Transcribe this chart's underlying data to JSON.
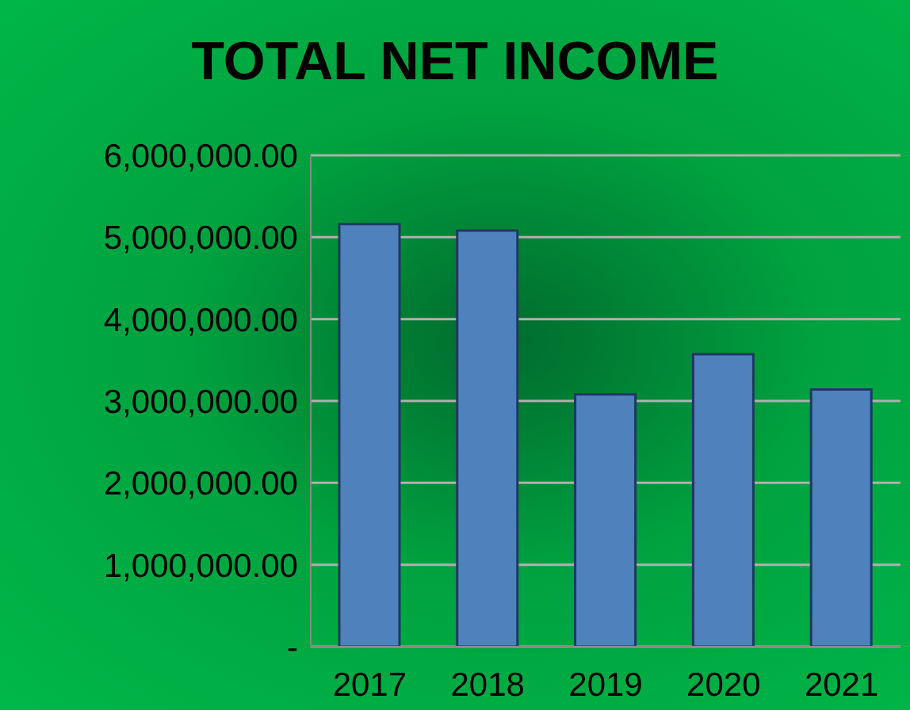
{
  "chart_data": {
    "type": "bar",
    "title": "TOTAL NET INCOME",
    "categories": [
      "2017",
      "2018",
      "2019",
      "2020",
      "2021"
    ],
    "values": [
      5160000,
      5080000,
      3080000,
      3570000,
      3140000
    ],
    "color": "#4f81bd",
    "ylim": [
      0,
      6000000
    ],
    "yticks": [
      {
        "value": 0,
        "label": "-"
      },
      {
        "value": 1000000,
        "label": "1,000,000.00"
      },
      {
        "value": 2000000,
        "label": "2,000,000.00"
      },
      {
        "value": 3000000,
        "label": "3,000,000.00"
      },
      {
        "value": 4000000,
        "label": "4,000,000.00"
      },
      {
        "value": 5000000,
        "label": "5,000,000.00"
      },
      {
        "value": 6000000,
        "label": "6,000,000.00"
      }
    ],
    "grid": "y"
  }
}
